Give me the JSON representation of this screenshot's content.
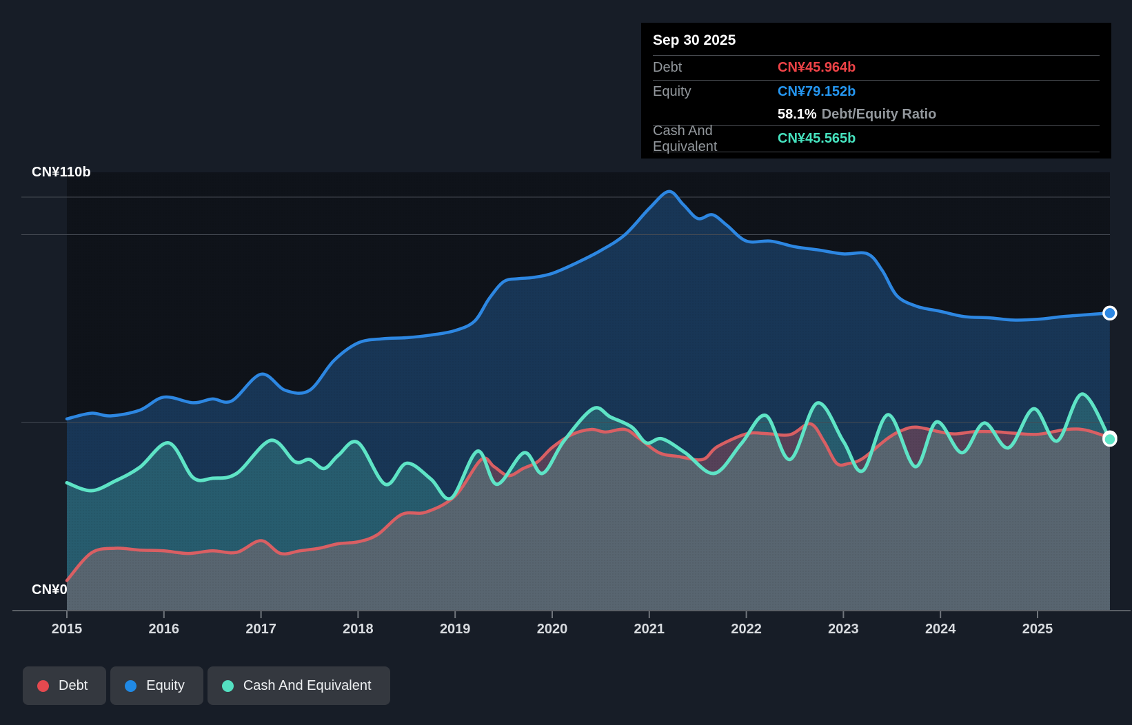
{
  "tooltip": {
    "date": "Sep 30 2025",
    "rows": [
      {
        "label": "Debt",
        "value": "CN¥45.964b",
        "color": "#ee4347"
      },
      {
        "label": "Equity",
        "value": "CN¥79.152b",
        "color": "#2596f0"
      },
      {
        "label": "",
        "ratio_value": "58.1%",
        "ratio_label": "Debt/Equity Ratio"
      },
      {
        "label": "Cash And Equivalent",
        "value": "CN¥45.565b",
        "color": "#46e3bf"
      }
    ]
  },
  "legend": {
    "items": [
      {
        "label": "Debt",
        "color": "#e4494f"
      },
      {
        "label": "Equity",
        "color": "#2089e5"
      },
      {
        "label": "Cash And Equivalent",
        "color": "#54e0c1"
      }
    ]
  },
  "colors": {
    "background": "#171d27",
    "plot_backdrop": "#10151d",
    "gridline": "#454a53",
    "axis_line": "#5a5f66",
    "tick_label": "#d9dce0",
    "tooltip_bg": "#000000",
    "tooltip_divider": "#46494e",
    "tooltip_label": "#93989d",
    "legend_chip_bg": "#34383f"
  },
  "chart_data": {
    "type": "area",
    "title": "",
    "unit": "CN¥ billions",
    "y_top_label": "CN¥110b",
    "y_zero_label": "CN¥0",
    "ylim": [
      0,
      110
    ],
    "x_range": [
      2015,
      2025.745
    ],
    "x_tick_labels": [
      "2015",
      "2016",
      "2017",
      "2018",
      "2019",
      "2020",
      "2021",
      "2022",
      "2023",
      "2024",
      "2025"
    ],
    "gridline_values": [
      110,
      100,
      50,
      0
    ],
    "legend_position": "bottom",
    "grid": true,
    "series": [
      {
        "name": "Debt",
        "line_color": "#d95f63",
        "fill_color": "rgba(214,92,97,0.33)",
        "end_marker": true,
        "points": [
          [
            2015.0,
            8.0
          ],
          [
            2015.25,
            15.3
          ],
          [
            2015.5,
            16.6
          ],
          [
            2015.75,
            16.1
          ],
          [
            2016.0,
            15.9
          ],
          [
            2016.25,
            15.2
          ],
          [
            2016.5,
            15.9
          ],
          [
            2016.75,
            15.5
          ],
          [
            2017.0,
            18.6
          ],
          [
            2017.2,
            15.2
          ],
          [
            2017.4,
            15.9
          ],
          [
            2017.6,
            16.6
          ],
          [
            2017.8,
            17.8
          ],
          [
            2018.0,
            18.3
          ],
          [
            2018.2,
            20.2
          ],
          [
            2018.45,
            25.6
          ],
          [
            2018.7,
            26.2
          ],
          [
            2019.0,
            30.5
          ],
          [
            2019.27,
            40.2
          ],
          [
            2019.4,
            38.3
          ],
          [
            2019.55,
            35.9
          ],
          [
            2019.7,
            37.8
          ],
          [
            2019.85,
            39.6
          ],
          [
            2020.0,
            43.4
          ],
          [
            2020.2,
            46.8
          ],
          [
            2020.4,
            48.2
          ],
          [
            2020.55,
            47.5
          ],
          [
            2020.75,
            48.2
          ],
          [
            2020.9,
            45.7
          ],
          [
            2021.1,
            42.0
          ],
          [
            2021.3,
            41.0
          ],
          [
            2021.55,
            40.2
          ],
          [
            2021.7,
            43.6
          ],
          [
            2022.0,
            47.0
          ],
          [
            2022.2,
            47.1
          ],
          [
            2022.45,
            46.8
          ],
          [
            2022.66,
            49.7
          ],
          [
            2022.8,
            45.0
          ],
          [
            2022.93,
            39.2
          ],
          [
            2023.05,
            39.1
          ],
          [
            2023.2,
            40.5
          ],
          [
            2023.45,
            45.7
          ],
          [
            2023.6,
            47.9
          ],
          [
            2023.75,
            48.8
          ],
          [
            2024.0,
            47.5
          ],
          [
            2024.15,
            47.0
          ],
          [
            2024.35,
            47.6
          ],
          [
            2024.55,
            47.6
          ],
          [
            2024.75,
            47.2
          ],
          [
            2025.0,
            46.9
          ],
          [
            2025.3,
            48.2
          ],
          [
            2025.5,
            48.0
          ],
          [
            2025.745,
            45.964
          ]
        ]
      },
      {
        "name": "Equity",
        "line_color": "#2d87e2",
        "fill_color": "rgba(45,135,226,0.30)",
        "end_marker": true,
        "points": [
          [
            2015.0,
            51.0
          ],
          [
            2015.25,
            52.5
          ],
          [
            2015.45,
            51.8
          ],
          [
            2015.75,
            53.3
          ],
          [
            2016.0,
            56.8
          ],
          [
            2016.3,
            55.3
          ],
          [
            2016.5,
            56.3
          ],
          [
            2016.7,
            55.8
          ],
          [
            2017.0,
            62.9
          ],
          [
            2017.25,
            58.6
          ],
          [
            2017.5,
            58.6
          ],
          [
            2017.75,
            66.5
          ],
          [
            2018.0,
            71.2
          ],
          [
            2018.25,
            72.3
          ],
          [
            2018.5,
            72.6
          ],
          [
            2018.75,
            73.3
          ],
          [
            2019.0,
            74.5
          ],
          [
            2019.2,
            77.0
          ],
          [
            2019.35,
            83.0
          ],
          [
            2019.5,
            87.5
          ],
          [
            2019.65,
            88.3
          ],
          [
            2019.8,
            88.6
          ],
          [
            2020.0,
            89.7
          ],
          [
            2020.25,
            92.5
          ],
          [
            2020.5,
            95.8
          ],
          [
            2020.75,
            100.0
          ],
          [
            2021.0,
            107.0
          ],
          [
            2021.2,
            111.5
          ],
          [
            2021.35,
            108.0
          ],
          [
            2021.5,
            104.3
          ],
          [
            2021.65,
            105.3
          ],
          [
            2021.8,
            102.5
          ],
          [
            2022.0,
            98.3
          ],
          [
            2022.25,
            98.3
          ],
          [
            2022.5,
            96.8
          ],
          [
            2022.75,
            95.9
          ],
          [
            2023.0,
            94.9
          ],
          [
            2023.25,
            94.9
          ],
          [
            2023.4,
            90.5
          ],
          [
            2023.55,
            83.8
          ],
          [
            2023.75,
            81.0
          ],
          [
            2024.0,
            79.6
          ],
          [
            2024.25,
            78.2
          ],
          [
            2024.5,
            77.9
          ],
          [
            2024.75,
            77.3
          ],
          [
            2025.0,
            77.5
          ],
          [
            2025.25,
            78.2
          ],
          [
            2025.5,
            78.7
          ],
          [
            2025.745,
            79.152
          ]
        ]
      },
      {
        "name": "Cash And Equivalent",
        "line_color": "#5ee4c6",
        "fill_color": "rgba(94,228,198,0.22)",
        "end_marker": true,
        "points": [
          [
            2015.0,
            34.0
          ],
          [
            2015.25,
            31.9
          ],
          [
            2015.5,
            34.5
          ],
          [
            2015.75,
            38.1
          ],
          [
            2016.05,
            44.6
          ],
          [
            2016.3,
            35.4
          ],
          [
            2016.5,
            35.2
          ],
          [
            2016.75,
            36.5
          ],
          [
            2017.1,
            45.3
          ],
          [
            2017.35,
            39.6
          ],
          [
            2017.5,
            40.2
          ],
          [
            2017.65,
            37.8
          ],
          [
            2017.8,
            41.4
          ],
          [
            2018.0,
            44.7
          ],
          [
            2018.28,
            33.6
          ],
          [
            2018.5,
            39.2
          ],
          [
            2018.75,
            35.0
          ],
          [
            2018.96,
            29.9
          ],
          [
            2019.23,
            42.4
          ],
          [
            2019.43,
            33.6
          ],
          [
            2019.71,
            42.0
          ],
          [
            2019.9,
            36.5
          ],
          [
            2020.12,
            45.1
          ],
          [
            2020.42,
            53.7
          ],
          [
            2020.6,
            51.5
          ],
          [
            2020.82,
            48.8
          ],
          [
            2020.97,
            44.6
          ],
          [
            2021.13,
            45.7
          ],
          [
            2021.37,
            42.0
          ],
          [
            2021.67,
            36.5
          ],
          [
            2021.95,
            44.5
          ],
          [
            2022.2,
            51.9
          ],
          [
            2022.45,
            40.2
          ],
          [
            2022.73,
            55.2
          ],
          [
            2023.0,
            45.0
          ],
          [
            2023.2,
            37.2
          ],
          [
            2023.46,
            52.1
          ],
          [
            2023.74,
            38.3
          ],
          [
            2023.96,
            50.2
          ],
          [
            2024.22,
            42.0
          ],
          [
            2024.45,
            49.9
          ],
          [
            2024.7,
            43.3
          ],
          [
            2024.96,
            53.7
          ],
          [
            2025.2,
            45.1
          ],
          [
            2025.46,
            57.6
          ],
          [
            2025.745,
            45.565
          ]
        ]
      }
    ]
  }
}
